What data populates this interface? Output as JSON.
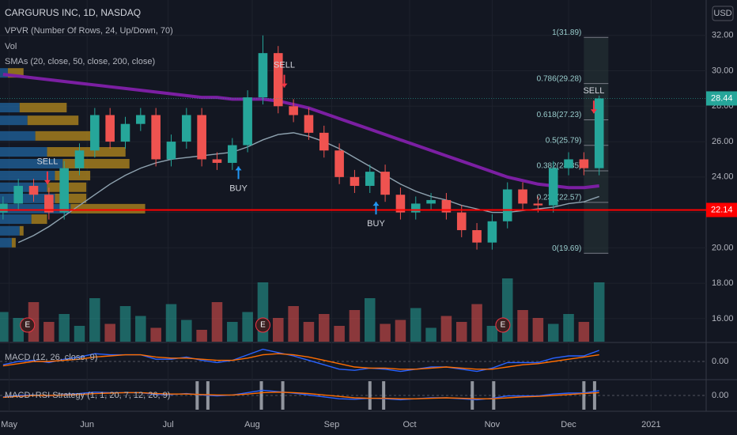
{
  "chart_data": {
    "type": "candlestick",
    "title": "CARGURUS INC, 1D, NASDAQ",
    "indicators": [
      "VPVR (Number Of Rows, 24, Up/Down, 70)",
      "Vol",
      "SMAs (20, close, 50, close, 200, close)"
    ],
    "currency": "USD",
    "xlim": [
      -0.2,
      46
    ],
    "xticks": [
      {
        "value": 0.4,
        "label": "May"
      },
      {
        "value": 5.5,
        "label": "Jun"
      },
      {
        "value": 10.8,
        "label": "Jul"
      },
      {
        "value": 16.3,
        "label": "Aug"
      },
      {
        "value": 21.5,
        "label": "Sep"
      },
      {
        "value": 26.6,
        "label": "Oct"
      },
      {
        "value": 32,
        "label": "Nov"
      },
      {
        "value": 37,
        "label": "Dec"
      },
      {
        "value": 42.4,
        "label": "2021"
      }
    ],
    "ylim": [
      14.7,
      34
    ],
    "yticks": [
      {
        "value": 16,
        "label": "16.00"
      },
      {
        "value": 18,
        "label": "18.00"
      },
      {
        "value": 20,
        "label": "20.00"
      },
      {
        "value": 22,
        "label": "22.00"
      },
      {
        "value": 24,
        "label": "24.00"
      },
      {
        "value": 26,
        "label": "26.00"
      },
      {
        "value": 28,
        "label": "28.00"
      },
      {
        "value": 30,
        "label": "30.00"
      },
      {
        "value": 32,
        "label": "32.00"
      }
    ],
    "grid": true,
    "up_color": "#26a69a",
    "down_color": "#ef5350",
    "open": [
      22.0,
      22.5,
      23.5,
      23.0,
      22.0,
      24.5,
      25.5,
      27.5,
      26.0,
      27.0,
      27.5,
      25.0,
      26.0,
      27.5,
      25.0,
      24.8,
      25.8,
      28.5,
      31.0,
      28.0,
      27.5,
      26.5,
      25.5,
      24.0,
      23.5,
      24.3,
      23.0,
      22.0,
      22.5,
      22.7,
      22.0,
      21.0,
      20.3,
      21.5,
      23.3,
      22.5,
      22.4,
      24.5,
      25.0,
      24.5
    ],
    "high": [
      22.9,
      23.9,
      23.9,
      23.4,
      24.9,
      25.9,
      27.9,
      27.9,
      27.4,
      27.9,
      27.9,
      26.4,
      27.9,
      27.9,
      25.4,
      26.2,
      28.9,
      32.0,
      31.4,
      28.4,
      27.9,
      26.9,
      25.9,
      24.4,
      24.7,
      24.7,
      23.4,
      22.9,
      23.1,
      23.1,
      22.4,
      21.4,
      21.9,
      23.7,
      23.7,
      22.9,
      24.9,
      25.4,
      25.4,
      28.6
    ],
    "low": [
      21.6,
      22.1,
      22.6,
      21.6,
      21.6,
      24.1,
      25.1,
      25.6,
      25.6,
      26.6,
      24.6,
      24.6,
      25.6,
      24.6,
      24.4,
      24.4,
      25.4,
      28.1,
      27.6,
      27.1,
      26.1,
      25.1,
      23.6,
      23.1,
      23.1,
      22.6,
      21.6,
      21.6,
      22.1,
      21.6,
      20.6,
      19.9,
      19.9,
      21.1,
      22.1,
      22.0,
      22.0,
      24.1,
      24.1,
      24.1
    ],
    "close": [
      22.5,
      23.5,
      23.0,
      22.0,
      24.5,
      25.5,
      27.5,
      26.0,
      27.0,
      27.5,
      25.0,
      26.0,
      27.5,
      25.0,
      24.8,
      25.8,
      28.5,
      31.0,
      28.0,
      27.5,
      26.5,
      25.5,
      24.0,
      23.5,
      24.3,
      23.0,
      22.0,
      22.5,
      22.7,
      22.0,
      21.0,
      20.3,
      21.5,
      23.3,
      22.5,
      22.4,
      24.5,
      25.0,
      24.5,
      28.44
    ],
    "series": [
      {
        "name": "SMA 200",
        "color": "#7b1fa2",
        "values": [
          29.8,
          29.7,
          29.6,
          29.5,
          29.4,
          29.3,
          29.2,
          29.1,
          29.0,
          28.9,
          28.8,
          28.7,
          28.6,
          28.5,
          28.5,
          28.4,
          28.4,
          28.4,
          28.3,
          28.1,
          27.9,
          27.6,
          27.3,
          27.0,
          26.7,
          26.4,
          26.1,
          25.8,
          25.5,
          25.2,
          24.9,
          24.6,
          24.3,
          24.0,
          23.8,
          23.6,
          23.5,
          23.4,
          23.4,
          23.5
        ]
      },
      {
        "name": "SMA 50",
        "color": "#8fa3b0",
        "values": [
          null,
          20.3,
          20.7,
          21.2,
          21.8,
          22.4,
          23.0,
          23.6,
          24.1,
          24.5,
          24.8,
          25.0,
          25.1,
          25.2,
          25.3,
          25.4,
          25.7,
          26.1,
          26.4,
          26.5,
          26.3,
          26.0,
          25.6,
          25.1,
          24.6,
          24.1,
          23.6,
          23.2,
          22.9,
          22.7,
          22.4,
          22.2,
          22.0,
          22.0,
          22.1,
          22.2,
          22.3,
          22.5,
          22.6,
          22.9
        ]
      }
    ],
    "volume": [
      1.5,
      1.2,
      2.0,
      1.0,
      1.4,
      0.8,
      2.2,
      0.9,
      1.8,
      1.3,
      0.7,
      1.9,
      1.1,
      0.6,
      2.0,
      1.0,
      1.5,
      3.0,
      1.2,
      1.8,
      1.0,
      1.4,
      0.8,
      1.6,
      2.2,
      0.9,
      1.1,
      1.7,
      0.7,
      1.3,
      1.0,
      1.9,
      0.8,
      3.2,
      1.6,
      1.2,
      0.9,
      1.4,
      1.0,
      3.0
    ],
    "volume_lim": [
      0,
      4.2
    ],
    "vpvr": {
      "prices": [
        29.86,
        27.9,
        27.18,
        26.3,
        25.4,
        24.73,
        24.06,
        23.4,
        22.77,
        22.19,
        21.6,
        20.94,
        20.27
      ],
      "up": [
        10,
        25,
        35,
        45,
        60,
        80,
        70,
        60,
        70,
        90,
        40,
        25,
        15
      ],
      "down": [
        20,
        60,
        65,
        75,
        100,
        85,
        45,
        50,
        40,
        95,
        20,
        5,
        5
      ],
      "lim": [
        0,
        900
      ],
      "up_color": "#1e5a8f",
      "down_color": "#a37c1d"
    },
    "hline": {
      "value": 22.14,
      "label": "22.14",
      "color": "#ff0000"
    },
    "last_price": {
      "value": 28.44,
      "label": "28.44",
      "color": "#26a69a"
    },
    "fib": {
      "start": 38,
      "end": 39.6,
      "levels": [
        {
          "value": 31.89,
          "label": "1(31.89)"
        },
        {
          "value": 29.28,
          "label": "0.786(29.28)"
        },
        {
          "value": 27.23,
          "label": "0.618(27.23)"
        },
        {
          "value": 25.79,
          "label": "0.5(25.79)"
        },
        {
          "value": 24.35,
          "label": "0.382(24.35)"
        },
        {
          "value": 22.57,
          "label": "0.236(22.57)"
        },
        {
          "value": 19.69,
          "label": "0(19.69)"
        }
      ]
    },
    "signals": [
      {
        "label": "SELL",
        "x": 2.9,
        "value": 23.6
      },
      {
        "label": "BUY",
        "x": 15.4,
        "value": 24.6
      },
      {
        "label": "SELL",
        "x": 18.4,
        "value": 29.06
      },
      {
        "label": "BUY",
        "x": 24.4,
        "value": 22.6
      },
      {
        "label": "SELL",
        "x": 38.65,
        "value": 27.6
      }
    ],
    "earnings": {
      "label": "E",
      "x": [
        1.6,
        17,
        32.7
      ]
    },
    "macd": {
      "title": "MACD (12, 26, close, 9)",
      "ylim": [
        -1.5,
        1.5
      ],
      "yticks": [
        {
          "value": 0,
          "label": "0.00"
        }
      ],
      "series": [
        {
          "name": "MACD",
          "color": "#2962ff",
          "values": [
            -0.3,
            0.0,
            0.1,
            -0.1,
            0.2,
            0.4,
            0.7,
            0.6,
            0.6,
            0.6,
            0.2,
            0.2,
            0.4,
            0.1,
            -0.1,
            0.1,
            0.6,
            1.1,
            0.8,
            0.5,
            0.1,
            -0.3,
            -0.7,
            -0.8,
            -0.6,
            -0.7,
            -0.9,
            -0.7,
            -0.5,
            -0.5,
            -0.7,
            -0.9,
            -0.6,
            -0.1,
            -0.1,
            -0.1,
            0.3,
            0.5,
            0.5,
            1.0
          ]
        },
        {
          "name": "Signal",
          "color": "#ff6d00",
          "values": [
            -0.4,
            -0.2,
            0.0,
            0.0,
            0.1,
            0.2,
            0.4,
            0.5,
            0.6,
            0.6,
            0.4,
            0.3,
            0.3,
            0.2,
            0.1,
            0.1,
            0.3,
            0.6,
            0.7,
            0.6,
            0.4,
            0.1,
            -0.2,
            -0.5,
            -0.6,
            -0.6,
            -0.7,
            -0.7,
            -0.6,
            -0.5,
            -0.6,
            -0.7,
            -0.7,
            -0.5,
            -0.3,
            -0.2,
            0.0,
            0.2,
            0.4,
            0.6
          ]
        }
      ]
    },
    "strategy": {
      "title": "MACD+RSI Strategy (1, 1, 20, 7, 12, 26, 9)",
      "ylim": [
        -3,
        3
      ],
      "yticks": [
        {
          "value": 0,
          "label": "0.00"
        }
      ],
      "bars": [
        12.7,
        13.4,
        16.9,
        18.3,
        24.0,
        24.9,
        30.7,
        32.1,
        38.0,
        38.7
      ],
      "series": [
        {
          "name": "MACD",
          "color": "#2962ff",
          "values": [
            -0.3,
            0.0,
            0.1,
            -0.1,
            0.2,
            0.4,
            0.7,
            0.6,
            0.6,
            0.6,
            0.2,
            0.2,
            0.4,
            0.1,
            -0.1,
            0.1,
            0.6,
            1.1,
            0.8,
            0.5,
            0.1,
            -0.3,
            -0.7,
            -0.8,
            -0.6,
            -0.7,
            -0.9,
            -0.7,
            -0.5,
            -0.5,
            -0.7,
            -0.9,
            -0.6,
            -0.1,
            -0.1,
            -0.1,
            0.3,
            0.5,
            0.5,
            1.0
          ]
        },
        {
          "name": "Signal",
          "color": "#ff6d00",
          "values": [
            -0.4,
            -0.2,
            0.0,
            0.0,
            0.1,
            0.2,
            0.4,
            0.5,
            0.6,
            0.6,
            0.4,
            0.3,
            0.3,
            0.2,
            0.1,
            0.1,
            0.3,
            0.6,
            0.7,
            0.6,
            0.4,
            0.1,
            -0.2,
            -0.5,
            -0.6,
            -0.6,
            -0.7,
            -0.7,
            -0.6,
            -0.5,
            -0.6,
            -0.7,
            -0.7,
            -0.5,
            -0.3,
            -0.2,
            0.0,
            0.2,
            0.4,
            0.6
          ]
        }
      ]
    }
  }
}
